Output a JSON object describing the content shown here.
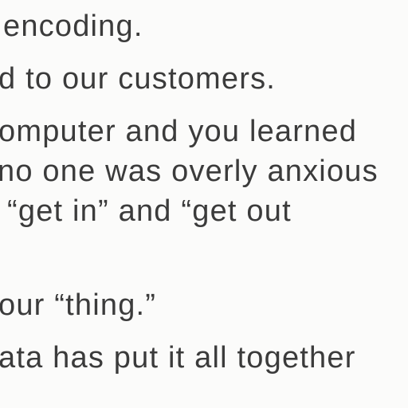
{
  "document": {
    "lines": [
      "encoding.",
      "d to our customers.",
      "omputer and you learned",
      "no one was overly anxious",
      "“get in” and “get out",
      "our “thing.”",
      "ata has put it all together"
    ]
  }
}
